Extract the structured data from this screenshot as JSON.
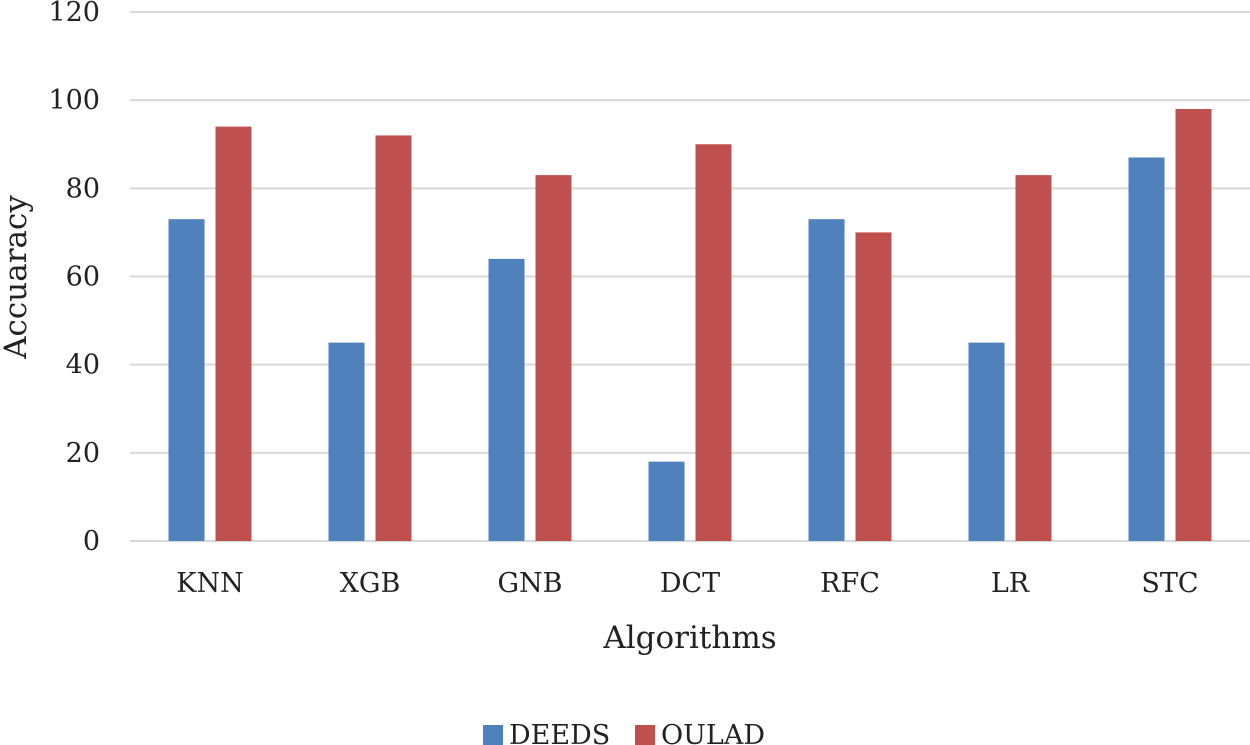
{
  "chart_data": {
    "type": "bar",
    "title": "",
    "xlabel": "Algorithms",
    "ylabel": "Accuaracy",
    "ylim": [
      0,
      120
    ],
    "yticks": [
      0,
      20,
      40,
      60,
      80,
      100,
      120
    ],
    "categories": [
      "KNN",
      "XGB",
      "GNB",
      "DCT",
      "RFC",
      "LR",
      "STC"
    ],
    "series": [
      {
        "name": "DEEDS",
        "color": "#4f81bd",
        "values": [
          73,
          45,
          64,
          18,
          73,
          45,
          87
        ]
      },
      {
        "name": "OULAD",
        "color": "#c0504d",
        "values": [
          94,
          92,
          83,
          90,
          70,
          83,
          98
        ]
      }
    ],
    "grid": true,
    "legend": "bottom"
  }
}
